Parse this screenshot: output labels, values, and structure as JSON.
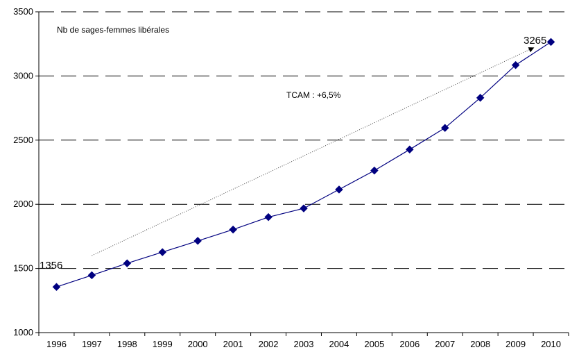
{
  "chart_data": {
    "type": "line",
    "title": "Nb de sages-femmes libérales",
    "x": [
      "1996",
      "1997",
      "1998",
      "1999",
      "2000",
      "2001",
      "2002",
      "2003",
      "2004",
      "2005",
      "2006",
      "2007",
      "2008",
      "2009",
      "2010"
    ],
    "series": [
      {
        "values": [
          1356,
          1447,
          1540,
          1627,
          1715,
          1803,
          1900,
          1968,
          2115,
          2263,
          2427,
          2595,
          2830,
          3085,
          3265
        ],
        "color": "#000080",
        "marker": "diamond"
      }
    ],
    "ylim": [
      1000,
      3500
    ],
    "yticks": [
      1000,
      1500,
      2000,
      2500,
      3000,
      3500
    ],
    "grid": "horizontal dashed",
    "legend": "none",
    "annotations": {
      "start_value": "1356",
      "end_value": "3265",
      "growth_label": "TCAM : +6,5%"
    },
    "trend_arrow": {
      "from": {
        "x": "1997",
        "y": 1600
      },
      "to": {
        "x": "2010",
        "y": 3220
      }
    },
    "colors": {
      "series": "#000080",
      "grid": "#000000",
      "trend": "#444444"
    }
  }
}
